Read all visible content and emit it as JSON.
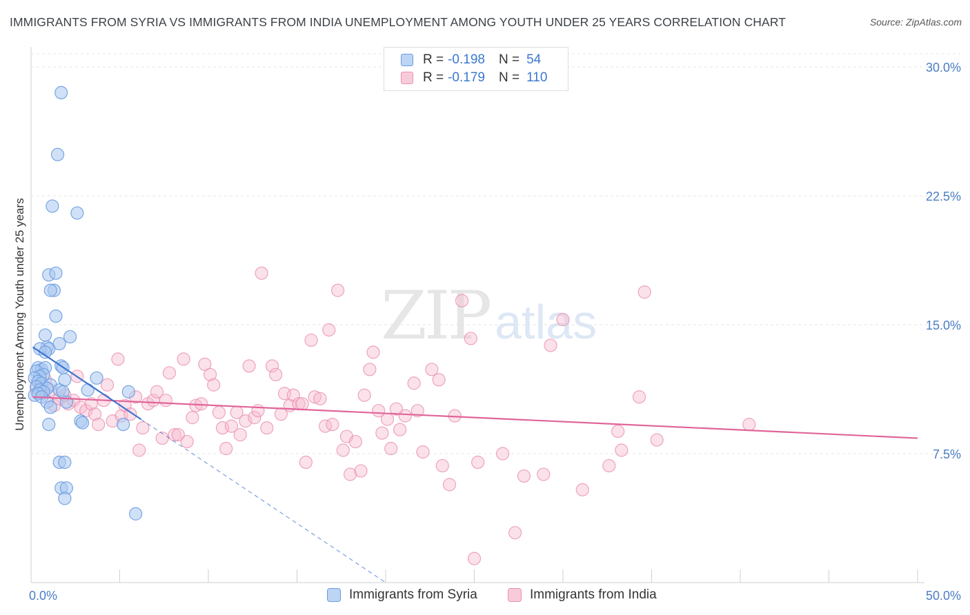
{
  "header": {
    "title": "IMMIGRANTS FROM SYRIA VS IMMIGRANTS FROM INDIA UNEMPLOYMENT AMONG YOUTH UNDER 25 YEARS CORRELATION CHART",
    "source": "Source: ZipAtlas.com"
  },
  "watermark": {
    "zip": "ZIP",
    "atlas": "atlas"
  },
  "legend": {
    "syria": {
      "r_label": "R =",
      "r_value": "-0.198",
      "n_label": "N =",
      "n_value": "54"
    },
    "india": {
      "r_label": "R =",
      "r_value": "-0.179",
      "n_label": "N =",
      "n_value": "110"
    }
  },
  "bottom_legend": {
    "syria": "Immigrants from Syria",
    "india": "Immigrants from India"
  },
  "colors": {
    "syria_fill": "#a9c8f0",
    "syria_stroke": "#6a9be0",
    "syria_line": "#3c72d0",
    "india_fill": "#f6bdd0",
    "india_stroke": "#ea8fb0",
    "india_line": "#e0649a",
    "tick_text": "#4a7dc4",
    "grid": "#e4e4e4"
  },
  "chart_data": {
    "type": "scatter",
    "title": "IMMIGRANTS FROM SYRIA VS IMMIGRANTS FROM INDIA UNEMPLOYMENT AMONG YOUTH UNDER 25 YEARS CORRELATION CHART",
    "xlabel": "",
    "ylabel": "Unemployment Among Youth under 25 years",
    "xlim": [
      0,
      50
    ],
    "ylim": [
      0,
      32
    ],
    "x_tick_labels": [
      "0.0%",
      "50.0%"
    ],
    "y_ticks": [
      7.5,
      15.0,
      22.5,
      30.0
    ],
    "y_tick_labels": [
      "7.5%",
      "15.0%",
      "22.5%",
      "30.0%"
    ],
    "grid": true,
    "series": [
      {
        "name": "Immigrants from Syria",
        "r": -0.198,
        "n": 54,
        "trend": {
          "x_start": 0.1,
          "y_start": 13.7,
          "x_end": 6.2,
          "y_end": 9.5,
          "dashed_to_x": 20.0,
          "dashed_to_y": 0.0
        },
        "points": [
          [
            1.7,
            28.5
          ],
          [
            1.5,
            24.9
          ],
          [
            1.2,
            21.9
          ],
          [
            2.6,
            21.5
          ],
          [
            1.0,
            17.9
          ],
          [
            1.4,
            18.0
          ],
          [
            1.3,
            17.0
          ],
          [
            1.1,
            17.0
          ],
          [
            1.4,
            15.5
          ],
          [
            0.8,
            14.4
          ],
          [
            2.2,
            14.3
          ],
          [
            1.6,
            13.9
          ],
          [
            0.9,
            13.7
          ],
          [
            1.0,
            13.6
          ],
          [
            0.5,
            13.6
          ],
          [
            0.8,
            13.4
          ],
          [
            0.4,
            12.5
          ],
          [
            0.6,
            12.4
          ],
          [
            0.8,
            12.5
          ],
          [
            1.7,
            12.6
          ],
          [
            1.8,
            12.5
          ],
          [
            0.3,
            12.3
          ],
          [
            0.7,
            12.1
          ],
          [
            0.5,
            12.0
          ],
          [
            0.2,
            11.9
          ],
          [
            0.4,
            11.7
          ],
          [
            3.7,
            11.9
          ],
          [
            1.9,
            11.8
          ],
          [
            0.6,
            11.6
          ],
          [
            1.1,
            11.5
          ],
          [
            0.9,
            11.3
          ],
          [
            0.3,
            11.4
          ],
          [
            0.5,
            11.2
          ],
          [
            0.7,
            11.1
          ],
          [
            1.6,
            11.2
          ],
          [
            1.8,
            11.1
          ],
          [
            3.2,
            11.2
          ],
          [
            5.5,
            11.1
          ],
          [
            0.2,
            10.9
          ],
          [
            0.4,
            11.0
          ],
          [
            0.6,
            10.8
          ],
          [
            0.9,
            10.5
          ],
          [
            1.1,
            10.2
          ],
          [
            2.0,
            10.5
          ],
          [
            2.8,
            9.4
          ],
          [
            2.9,
            9.3
          ],
          [
            5.2,
            9.2
          ],
          [
            1.0,
            9.2
          ],
          [
            1.6,
            7.0
          ],
          [
            1.9,
            7.0
          ],
          [
            1.7,
            5.5
          ],
          [
            2.0,
            5.5
          ],
          [
            1.9,
            4.9
          ],
          [
            5.9,
            4.0
          ]
        ]
      },
      {
        "name": "Immigrants from India",
        "r": -0.179,
        "n": 110,
        "trend": {
          "x_start": 0.1,
          "y_start": 10.8,
          "x_end": 50.0,
          "y_end": 8.4
        },
        "points": [
          [
            0.3,
            11.3
          ],
          [
            0.6,
            11.0
          ],
          [
            0.8,
            11.8
          ],
          [
            1.1,
            11.2
          ],
          [
            1.3,
            10.3
          ],
          [
            1.6,
            10.7
          ],
          [
            1.9,
            10.9
          ],
          [
            2.1,
            10.4
          ],
          [
            2.4,
            10.6
          ],
          [
            2.6,
            12.0
          ],
          [
            2.8,
            10.2
          ],
          [
            3.1,
            10.0
          ],
          [
            3.4,
            10.4
          ],
          [
            3.6,
            9.8
          ],
          [
            3.8,
            9.2
          ],
          [
            4.1,
            10.6
          ],
          [
            4.3,
            11.5
          ],
          [
            4.6,
            9.4
          ],
          [
            4.9,
            13.0
          ],
          [
            5.1,
            9.7
          ],
          [
            5.3,
            10.3
          ],
          [
            5.6,
            9.8
          ],
          [
            5.9,
            10.8
          ],
          [
            6.1,
            7.7
          ],
          [
            6.3,
            9.0
          ],
          [
            6.6,
            10.4
          ],
          [
            6.9,
            10.6
          ],
          [
            7.1,
            11.1
          ],
          [
            7.4,
            8.4
          ],
          [
            7.6,
            10.6
          ],
          [
            7.8,
            12.2
          ],
          [
            8.1,
            8.6
          ],
          [
            8.3,
            8.6
          ],
          [
            8.6,
            13.0
          ],
          [
            8.8,
            8.2
          ],
          [
            9.1,
            9.6
          ],
          [
            9.3,
            10.3
          ],
          [
            9.6,
            10.4
          ],
          [
            9.8,
            12.7
          ],
          [
            10.1,
            12.1
          ],
          [
            10.3,
            11.5
          ],
          [
            10.6,
            9.9
          ],
          [
            10.8,
            9.0
          ],
          [
            11.0,
            7.8
          ],
          [
            11.3,
            9.1
          ],
          [
            11.6,
            9.9
          ],
          [
            11.8,
            8.6
          ],
          [
            12.1,
            9.4
          ],
          [
            12.3,
            12.6
          ],
          [
            12.6,
            9.6
          ],
          [
            12.8,
            10.0
          ],
          [
            13.0,
            18.0
          ],
          [
            13.3,
            9.0
          ],
          [
            13.6,
            12.6
          ],
          [
            13.8,
            12.1
          ],
          [
            14.1,
            9.8
          ],
          [
            14.3,
            11.0
          ],
          [
            14.6,
            10.3
          ],
          [
            14.8,
            10.9
          ],
          [
            15.1,
            10.4
          ],
          [
            15.3,
            10.4
          ],
          [
            15.5,
            7.0
          ],
          [
            15.8,
            14.1
          ],
          [
            16.0,
            10.8
          ],
          [
            16.3,
            10.7
          ],
          [
            16.6,
            9.1
          ],
          [
            16.8,
            14.7
          ],
          [
            17.0,
            9.2
          ],
          [
            17.3,
            17.0
          ],
          [
            17.6,
            7.7
          ],
          [
            17.8,
            8.5
          ],
          [
            18.0,
            6.3
          ],
          [
            18.3,
            8.2
          ],
          [
            18.6,
            6.5
          ],
          [
            18.8,
            10.9
          ],
          [
            19.1,
            12.4
          ],
          [
            19.3,
            13.4
          ],
          [
            19.6,
            10.0
          ],
          [
            19.8,
            8.7
          ],
          [
            20.1,
            9.5
          ],
          [
            20.3,
            7.8
          ],
          [
            20.6,
            10.1
          ],
          [
            20.8,
            8.9
          ],
          [
            21.1,
            9.7
          ],
          [
            21.6,
            11.6
          ],
          [
            21.8,
            10.0
          ],
          [
            22.1,
            7.6
          ],
          [
            22.6,
            12.4
          ],
          [
            23.0,
            11.8
          ],
          [
            23.2,
            6.8
          ],
          [
            23.6,
            5.7
          ],
          [
            23.9,
            9.7
          ],
          [
            24.3,
            16.4
          ],
          [
            24.8,
            14.2
          ],
          [
            25.2,
            7.0
          ],
          [
            26.6,
            7.5
          ],
          [
            27.3,
            2.9
          ],
          [
            27.8,
            6.2
          ],
          [
            28.9,
            6.3
          ],
          [
            29.3,
            13.8
          ],
          [
            30.0,
            15.3
          ],
          [
            31.1,
            5.4
          ],
          [
            32.6,
            6.8
          ],
          [
            33.1,
            8.8
          ],
          [
            33.3,
            7.7
          ],
          [
            34.3,
            10.8
          ],
          [
            34.6,
            16.9
          ],
          [
            35.3,
            8.3
          ],
          [
            40.5,
            9.2
          ],
          [
            25.0,
            1.4
          ]
        ]
      }
    ]
  }
}
